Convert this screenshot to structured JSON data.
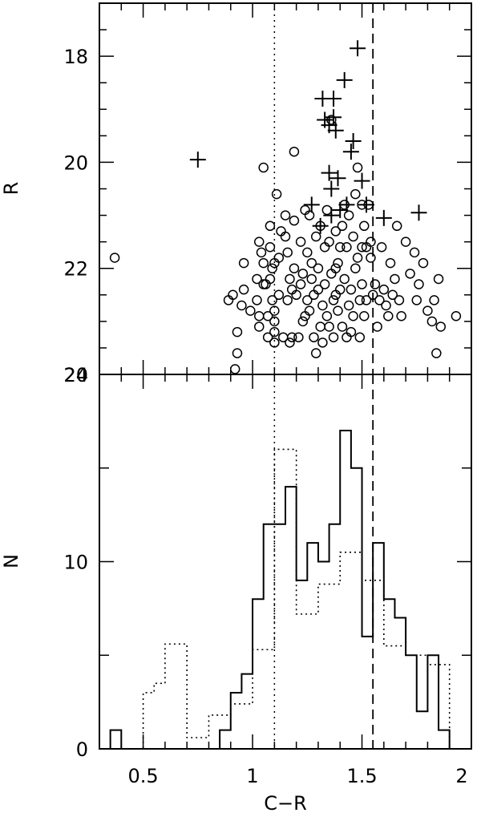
{
  "chart_data": [
    {
      "type": "scatter",
      "xlim": [
        0.3,
        2.0
      ],
      "ylim": [
        24,
        17
      ],
      "ylabel": "R",
      "y_ticks": [
        18,
        20,
        22,
        24
      ],
      "y_tick_labels": [
        "18",
        "20",
        "22",
        "24"
      ],
      "reference_lines": [
        {
          "x": 1.1,
          "style": "dotted"
        },
        {
          "x": 1.55,
          "style": "dashed"
        }
      ],
      "series": [
        {
          "marker": "circle",
          "points": [
            [
              0.37,
              21.8
            ],
            [
              0.92,
              23.9
            ],
            [
              0.93,
              23.6
            ],
            [
              0.93,
              23.2
            ],
            [
              0.89,
              22.6
            ],
            [
              0.91,
              22.5
            ],
            [
              0.95,
              22.7
            ],
            [
              0.96,
              21.9
            ],
            [
              0.96,
              22.4
            ],
            [
              0.99,
              22.8
            ],
            [
              1.02,
              22.2
            ],
            [
              1.02,
              22.6
            ],
            [
              1.03,
              22.9
            ],
            [
              1.03,
              23.1
            ],
            [
              1.03,
              21.5
            ],
            [
              1.04,
              21.7
            ],
            [
              1.05,
              21.9
            ],
            [
              1.05,
              22.3
            ],
            [
              1.05,
              20.1
            ],
            [
              1.06,
              22.3
            ],
            [
              1.07,
              22.9
            ],
            [
              1.07,
              23.3
            ],
            [
              1.08,
              21.2
            ],
            [
              1.08,
              21.6
            ],
            [
              1.08,
              22.2
            ],
            [
              1.09,
              22.0
            ],
            [
              1.09,
              22.6
            ],
            [
              1.1,
              23.0
            ],
            [
              1.1,
              23.4
            ],
            [
              1.1,
              22.8
            ],
            [
              1.1,
              21.9
            ],
            [
              1.1,
              23.2
            ],
            [
              1.11,
              20.6
            ],
            [
              1.12,
              22.5
            ],
            [
              1.12,
              21.8
            ],
            [
              1.13,
              21.3
            ],
            [
              1.14,
              23.3
            ],
            [
              1.15,
              21.4
            ],
            [
              1.15,
              21.0
            ],
            [
              1.16,
              21.7
            ],
            [
              1.16,
              22.6
            ],
            [
              1.17,
              22.2
            ],
            [
              1.17,
              23.4
            ],
            [
              1.18,
              23.3
            ],
            [
              1.18,
              22.4
            ],
            [
              1.19,
              19.8
            ],
            [
              1.19,
              21.1
            ],
            [
              1.19,
              22.0
            ],
            [
              1.2,
              22.5
            ],
            [
              1.21,
              23.3
            ],
            [
              1.22,
              21.5
            ],
            [
              1.22,
              22.3
            ],
            [
              1.23,
              22.1
            ],
            [
              1.23,
              23.0
            ],
            [
              1.24,
              20.9
            ],
            [
              1.24,
              22.9
            ],
            [
              1.25,
              21.7
            ],
            [
              1.25,
              22.6
            ],
            [
              1.26,
              22.8
            ],
            [
              1.26,
              21.0
            ],
            [
              1.27,
              21.9
            ],
            [
              1.27,
              22.2
            ],
            [
              1.28,
              22.5
            ],
            [
              1.28,
              23.3
            ],
            [
              1.29,
              23.6
            ],
            [
              1.29,
              21.4
            ],
            [
              1.3,
              22.0
            ],
            [
              1.3,
              22.4
            ],
            [
              1.31,
              23.1
            ],
            [
              1.31,
              21.2
            ],
            [
              1.32,
              22.7
            ],
            [
              1.32,
              23.4
            ],
            [
              1.33,
              22.3
            ],
            [
              1.33,
              21.6
            ],
            [
              1.34,
              20.9
            ],
            [
              1.34,
              22.9
            ],
            [
              1.35,
              23.1
            ],
            [
              1.35,
              21.5
            ],
            [
              1.36,
              22.1
            ],
            [
              1.36,
              19.2
            ],
            [
              1.37,
              22.6
            ],
            [
              1.37,
              23.3
            ],
            [
              1.38,
              21.3
            ],
            [
              1.38,
              22.0
            ],
            [
              1.38,
              22.5
            ],
            [
              1.39,
              21.9
            ],
            [
              1.39,
              22.8
            ],
            [
              1.4,
              21.6
            ],
            [
              1.4,
              22.4
            ],
            [
              1.41,
              21.2
            ],
            [
              1.41,
              23.1
            ],
            [
              1.42,
              20.8
            ],
            [
              1.42,
              22.2
            ],
            [
              1.43,
              23.3
            ],
            [
              1.43,
              21.6
            ],
            [
              1.44,
              22.7
            ],
            [
              1.44,
              21.0
            ],
            [
              1.45,
              22.4
            ],
            [
              1.45,
              23.2
            ],
            [
              1.46,
              21.4
            ],
            [
              1.46,
              22.9
            ],
            [
              1.47,
              20.6
            ],
            [
              1.47,
              22.0
            ],
            [
              1.48,
              20.1
            ],
            [
              1.48,
              21.8
            ],
            [
              1.49,
              22.6
            ],
            [
              1.49,
              23.3
            ],
            [
              1.5,
              20.8
            ],
            [
              1.5,
              21.6
            ],
            [
              1.5,
              22.3
            ],
            [
              1.51,
              21.2
            ],
            [
              1.51,
              22.9
            ],
            [
              1.52,
              21.6
            ],
            [
              1.52,
              22.6
            ],
            [
              1.53,
              20.8
            ],
            [
              1.54,
              21.5
            ],
            [
              1.54,
              21.8
            ],
            [
              1.55,
              22.5
            ],
            [
              1.56,
              22.3
            ],
            [
              1.57,
              23.1
            ],
            [
              1.58,
              22.6
            ],
            [
              1.59,
              21.6
            ],
            [
              1.6,
              22.4
            ],
            [
              1.61,
              22.7
            ],
            [
              1.62,
              22.9
            ],
            [
              1.63,
              21.9
            ],
            [
              1.64,
              22.5
            ],
            [
              1.65,
              22.2
            ],
            [
              1.66,
              21.2
            ],
            [
              1.67,
              22.6
            ],
            [
              1.68,
              22.9
            ],
            [
              1.7,
              21.5
            ],
            [
              1.72,
              22.1
            ],
            [
              1.74,
              21.7
            ],
            [
              1.75,
              22.6
            ],
            [
              1.76,
              22.3
            ],
            [
              1.78,
              21.9
            ],
            [
              1.8,
              22.8
            ],
            [
              1.82,
              23.0
            ],
            [
              1.83,
              22.6
            ],
            [
              1.84,
              23.6
            ],
            [
              1.85,
              22.2
            ],
            [
              1.86,
              23.1
            ],
            [
              1.93,
              22.9
            ]
          ]
        },
        {
          "marker": "plus",
          "points": [
            [
              0.75,
              19.95
            ],
            [
              1.27,
              20.8
            ],
            [
              1.31,
              21.2
            ],
            [
              1.32,
              18.8
            ],
            [
              1.33,
              19.2
            ],
            [
              1.35,
              19.3
            ],
            [
              1.35,
              20.2
            ],
            [
              1.36,
              20.5
            ],
            [
              1.36,
              21.0
            ],
            [
              1.37,
              18.8
            ],
            [
              1.37,
              19.15
            ],
            [
              1.38,
              19.4
            ],
            [
              1.39,
              20.3
            ],
            [
              1.4,
              20.9
            ],
            [
              1.42,
              18.45
            ],
            [
              1.43,
              20.8
            ],
            [
              1.45,
              19.8
            ],
            [
              1.46,
              19.6
            ],
            [
              1.48,
              17.85
            ],
            [
              1.5,
              20.35
            ],
            [
              1.52,
              20.8
            ],
            [
              1.6,
              21.05
            ],
            [
              1.76,
              20.95
            ]
          ]
        }
      ]
    },
    {
      "type": "histogram",
      "xlabel": "C−R",
      "ylabel": "N",
      "xlim": [
        0.3,
        2.0
      ],
      "ylim": [
        0,
        20
      ],
      "x_ticks": [
        0.5,
        1.0,
        1.5,
        2.0
      ],
      "x_tick_labels": [
        "0.5",
        "1",
        "1.5",
        "2"
      ],
      "y_ticks": [
        0,
        10,
        20
      ],
      "y_tick_labels": [
        "0",
        "10",
        "20"
      ],
      "bin_edges": [
        0.35,
        0.4,
        0.45,
        0.5,
        0.55,
        0.6,
        0.65,
        0.7,
        0.75,
        0.8,
        0.85,
        0.9,
        0.95,
        1.0,
        1.05,
        1.1,
        1.15,
        1.2,
        1.25,
        1.3,
        1.35,
        1.4,
        1.45,
        1.5,
        1.55,
        1.6,
        1.65,
        1.7,
        1.75,
        1.8,
        1.85,
        1.9,
        1.95
      ],
      "reference_lines": [
        {
          "x": 1.1,
          "style": "dotted"
        },
        {
          "x": 1.55,
          "style": "dashed"
        }
      ],
      "series": [
        {
          "style": "solid",
          "counts": [
            1,
            0,
            0,
            0,
            0,
            0,
            0,
            0,
            0,
            0,
            1,
            3,
            4,
            8,
            12,
            12,
            14,
            9,
            11,
            10,
            12,
            17,
            15,
            6,
            11,
            8,
            7,
            5,
            2,
            5,
            1,
            0
          ]
        },
        {
          "style": "dotted",
          "counts": [
            0,
            0,
            0,
            3,
            3.5,
            5.6,
            5.6,
            0.6,
            0.6,
            1.8,
            1.8,
            2.4,
            2.4,
            5.3,
            5.3,
            16,
            16,
            7.2,
            7.2,
            8.8,
            8.8,
            10.5,
            10.5,
            9,
            9,
            5.5,
            5.5,
            5,
            5,
            4.5,
            4.5,
            0
          ]
        }
      ]
    }
  ]
}
